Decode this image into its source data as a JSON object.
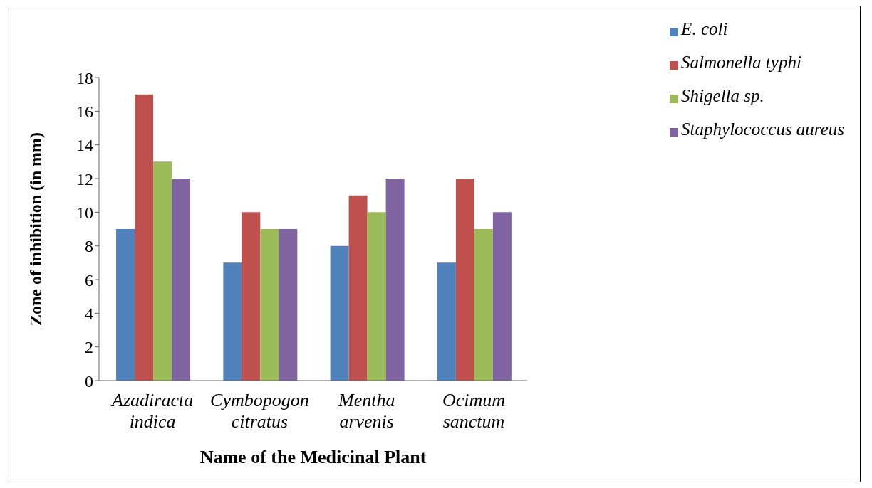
{
  "chart_data": {
    "type": "bar",
    "xlabel": "Name of the Medicinal Plant",
    "ylabel": "Zone of inhibition (in mm)",
    "categories": [
      "Azadiracta indica",
      "Cymbopogon citratus",
      "Mentha arvenis",
      "Ocimum sanctum"
    ],
    "series": [
      {
        "name": "E. coli",
        "color": "#4f81bd",
        "values": [
          9,
          7,
          8,
          7
        ]
      },
      {
        "name": "Salmonella typhi",
        "color": "#c0504d",
        "values": [
          17,
          10,
          11,
          12
        ]
      },
      {
        "name": "Shigella sp.",
        "color": "#9bbb59",
        "values": [
          13,
          9,
          10,
          9
        ]
      },
      {
        "name": "Staphylococcus aureus",
        "color": "#8064a2",
        "values": [
          12,
          9,
          12,
          10
        ]
      }
    ],
    "ylim": [
      0,
      18
    ],
    "yticks": [
      0,
      2,
      4,
      6,
      8,
      10,
      12,
      14,
      16,
      18
    ],
    "grid": false,
    "legend": "top right"
  }
}
